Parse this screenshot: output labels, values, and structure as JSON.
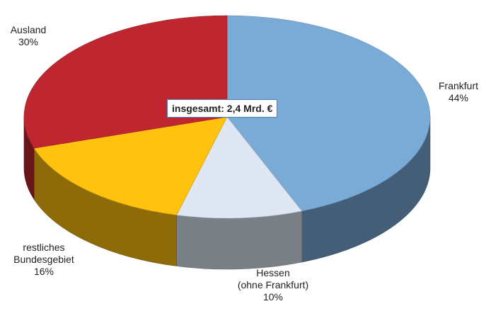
{
  "chart_data": {
    "type": "pie",
    "annotation": "insgesamt: 2,4 Mrd. €",
    "categories": [
      "Frankfurt",
      "Hessen\n(ohne Frankfurt)",
      "restliches\nBundesgebiet",
      "Ausland"
    ],
    "values": [
      44,
      10,
      16,
      30
    ],
    "value_labels": [
      "44%",
      "10%",
      "16%",
      "30%"
    ],
    "colors": [
      "#7aabd6",
      "#dfe7f4",
      "#ffc20e",
      "#bf262f"
    ]
  }
}
